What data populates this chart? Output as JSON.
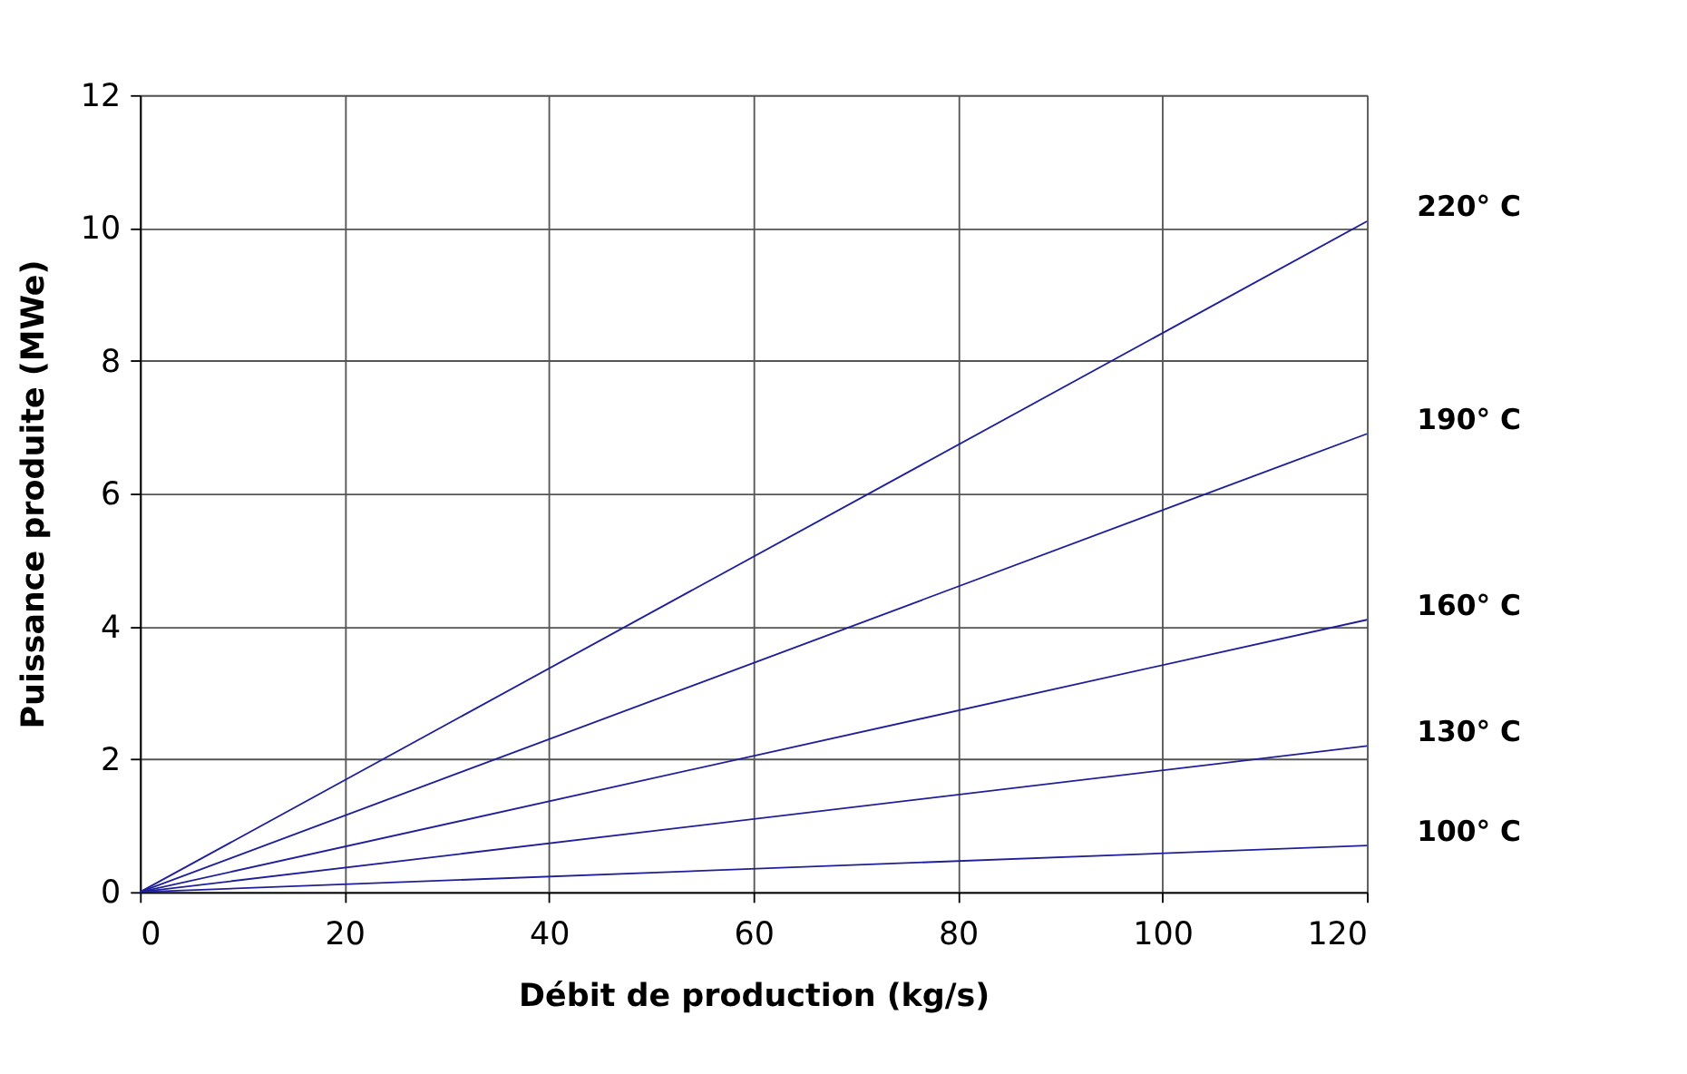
{
  "chart_data": {
    "type": "line",
    "xlabel": "Débit de production (kg/s)",
    "ylabel": "Puissance produite (MWe)",
    "x": [
      0,
      120
    ],
    "series": [
      {
        "name": "100° C",
        "color": "#1f1f9a",
        "values": [
          0,
          0.7
        ]
      },
      {
        "name": "130° C",
        "color": "#1f1f9a",
        "values": [
          0,
          2.2
        ]
      },
      {
        "name": "160° C",
        "color": "#1f1f9a",
        "values": [
          0,
          4.1
        ]
      },
      {
        "name": "190° C",
        "color": "#1f1f9a",
        "values": [
          0,
          6.9
        ]
      },
      {
        "name": "220° C",
        "color": "#1f1f9a",
        "values": [
          0,
          10.1
        ]
      }
    ],
    "xlim": [
      0,
      120
    ],
    "xticks": [
      0,
      20,
      40,
      60,
      80,
      100,
      120
    ],
    "ylim": [
      0,
      12
    ],
    "yticks": [
      0,
      2,
      4,
      6,
      8,
      10,
      12
    ],
    "grid": true,
    "legend": false,
    "marker": "none",
    "line_style": "solid"
  }
}
